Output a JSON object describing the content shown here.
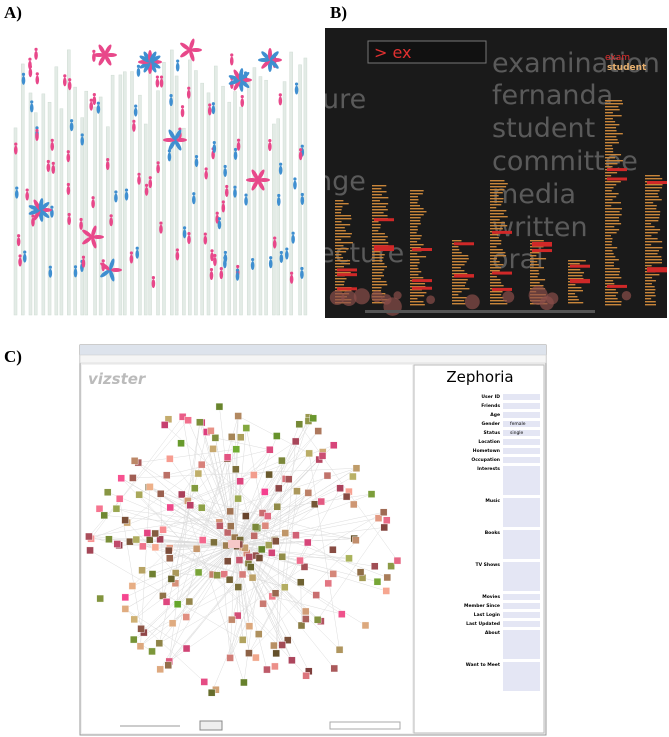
{
  "panels": [
    {
      "label": "A)"
    },
    {
      "label": "B)",
      "query": "> ex",
      "words": [
        "examination",
        "fernanda",
        "student",
        "committee",
        "media",
        "written",
        "oral"
      ],
      "background_words": [
        "ure",
        "nge",
        "ecture"
      ],
      "column_terms": [
        "exam",
        "student"
      ]
    },
    {
      "label": "C)",
      "app_title": "vizster",
      "profile": {
        "name": "Zephoria",
        "fields": [
          "User ID",
          "Friends",
          "Age",
          "Gender",
          "Status",
          "Location",
          "Hometown",
          "Occupation",
          "Interests",
          "Music",
          "Books",
          "TV Shows",
          "Movies",
          "Member Since",
          "Last Login",
          "Last Updated",
          "About",
          "Want to Meet"
        ],
        "values": {
          "gender": "female",
          "status": "single"
        }
      }
    }
  ]
}
